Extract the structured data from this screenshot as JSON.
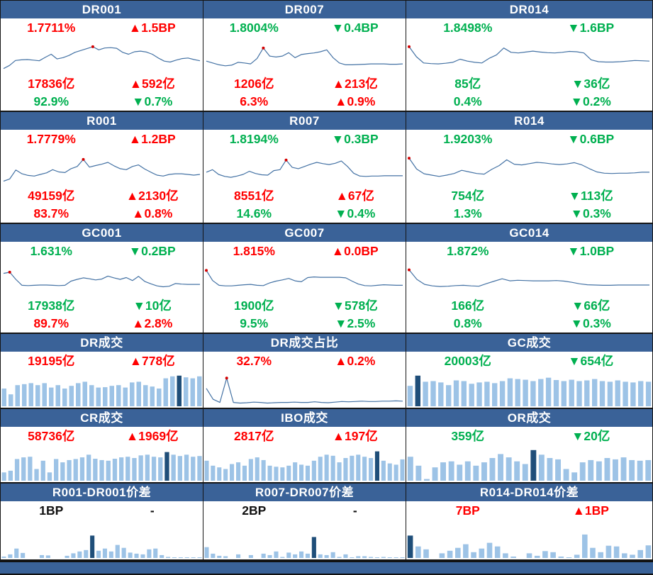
{
  "colors": {
    "header_bg": "#3a6298",
    "line": "#4472a4",
    "marker": "#d40000",
    "bar_light": "#9dc3e6",
    "bar_dark": "#1f4e79",
    "up_red": "#ff0000",
    "down_green": "#00b050",
    "neutral_black": "#111111",
    "footer_bg": "#3a6298"
  },
  "note": "sparkline series and bar heights are normalized 0-100 (no axes shown in source)",
  "chart_data": [
    {
      "panel": "DR001",
      "type": "line",
      "rows": [
        {
          "left": "1.7711%",
          "right": "▲1.5BP",
          "color": "#ff0000"
        },
        {
          "left": "17836亿",
          "right": "▲592亿",
          "color": "#ff0000"
        },
        {
          "left": "92.9%",
          "right": "▼0.7%",
          "color": "#00b050"
        }
      ],
      "series": [
        12,
        22,
        38,
        40,
        41,
        39,
        37,
        48,
        58,
        43,
        47,
        54,
        64,
        70,
        76,
        82,
        72,
        78,
        79,
        77,
        64,
        58,
        66,
        68,
        65,
        58,
        46,
        36,
        33,
        39,
        44,
        46,
        41,
        37
      ],
      "marker_index": 15
    },
    {
      "panel": "DR007",
      "type": "line",
      "rows": [
        {
          "left": "1.8004%",
          "right": "▼0.4BP",
          "color": "#00b050"
        },
        {
          "left": "1206亿",
          "right": "▲213亿",
          "color": "#ff0000"
        },
        {
          "left": "6.3%",
          "right": "▲0.9%",
          "color": "#ff0000"
        }
      ],
      "series": [
        36,
        30,
        24,
        21,
        23,
        32,
        30,
        27,
        44,
        78,
        52,
        49,
        52,
        63,
        47,
        57,
        60,
        62,
        66,
        72,
        47,
        30,
        24,
        24,
        25,
        26,
        27,
        27,
        27,
        26,
        26,
        27
      ],
      "marker_index": 9
    },
    {
      "panel": "DR014",
      "type": "line",
      "rows": [
        {
          "left": "1.8498%",
          "right": "▼1.6BP",
          "color": "#00b050"
        },
        {
          "left": "85亿",
          "right": "▼36亿",
          "color": "#00b050"
        },
        {
          "left": "0.4%",
          "right": "▼0.2%",
          "color": "#00b050"
        }
      ],
      "series": [
        82,
        50,
        30,
        28,
        27,
        29,
        32,
        42,
        36,
        32,
        30,
        45,
        56,
        78,
        64,
        62,
        65,
        68,
        65,
        63,
        62,
        64,
        67,
        66,
        62,
        40,
        34,
        33,
        33,
        34,
        36,
        38,
        37,
        36
      ],
      "marker_index": 0
    },
    {
      "panel": "R001",
      "type": "line",
      "rows": [
        {
          "left": "1.7779%",
          "right": "▲1.2BP",
          "color": "#ff0000"
        },
        {
          "left": "49159亿",
          "right": "▲2130亿",
          "color": "#ff0000"
        },
        {
          "left": "83.7%",
          "right": "▲0.8%",
          "color": "#ff0000"
        }
      ],
      "series": [
        10,
        17,
        45,
        33,
        28,
        26,
        31,
        36,
        46,
        39,
        37,
        49,
        56,
        78,
        54,
        59,
        63,
        69,
        58,
        49,
        46,
        56,
        61,
        48,
        38,
        29,
        26,
        31,
        33,
        33,
        31,
        29,
        31
      ],
      "marker_index": 13
    },
    {
      "panel": "R007",
      "type": "line",
      "rows": [
        {
          "left": "1.8194%",
          "right": "▼0.3BP",
          "color": "#00b050"
        },
        {
          "left": "8551亿",
          "right": "▲67亿",
          "color": "#ff0000"
        },
        {
          "left": "14.6%",
          "right": "▼0.4%",
          "color": "#00b050"
        }
      ],
      "series": [
        38,
        46,
        31,
        25,
        22,
        26,
        31,
        41,
        34,
        30,
        29,
        43,
        46,
        76,
        53,
        49,
        56,
        63,
        69,
        65,
        62,
        66,
        73,
        56,
        35,
        26,
        25,
        26,
        26,
        27,
        27,
        27,
        27
      ],
      "marker_index": 13
    },
    {
      "panel": "R014",
      "type": "line",
      "rows": [
        {
          "left": "1.9203%",
          "right": "▼0.6BP",
          "color": "#00b050"
        },
        {
          "left": "754亿",
          "right": "▼113亿",
          "color": "#00b050"
        },
        {
          "left": "1.3%",
          "right": "▼0.3%",
          "color": "#00b050"
        }
      ],
      "series": [
        82,
        48,
        33,
        29,
        25,
        29,
        34,
        44,
        39,
        34,
        32,
        47,
        59,
        77,
        63,
        61,
        65,
        69,
        67,
        64,
        62,
        64,
        68,
        61,
        49,
        39,
        35,
        34,
        35,
        35,
        36,
        38,
        38
      ],
      "marker_index": 0
    },
    {
      "panel": "GC001",
      "type": "line",
      "rows": [
        {
          "left": "1.631%",
          "right": "▼0.2BP",
          "color": "#00b050"
        },
        {
          "left": "17938亿",
          "right": "▼10亿",
          "color": "#00b050"
        },
        {
          "left": "89.7%",
          "right": "▲2.8%",
          "color": "#ff0000"
        }
      ],
      "series": [
        70,
        74,
        50,
        30,
        29,
        30,
        31,
        31,
        30,
        29,
        30,
        44,
        50,
        55,
        52,
        48,
        51,
        61,
        55,
        50,
        56,
        46,
        60,
        43,
        35,
        28,
        25,
        27,
        36,
        34,
        33,
        33,
        33
      ],
      "marker_index": 1
    },
    {
      "panel": "GC007",
      "type": "line",
      "rows": [
        {
          "left": "1.815%",
          "right": "▲0.0BP",
          "color": "#ff0000"
        },
        {
          "left": "1900亿",
          "right": "▼578亿",
          "color": "#00b050"
        },
        {
          "left": "9.5%",
          "right": "▼2.5%",
          "color": "#00b050"
        }
      ],
      "series": [
        80,
        46,
        30,
        28,
        28,
        30,
        32,
        33,
        30,
        29,
        38,
        44,
        48,
        53,
        45,
        42,
        56,
        58,
        57,
        57,
        57,
        57,
        55,
        44,
        34,
        29,
        28,
        30,
        32,
        31,
        30,
        30
      ],
      "marker_index": 0
    },
    {
      "panel": "GC014",
      "type": "line",
      "rows": [
        {
          "left": "1.872%",
          "right": "▼1.0BP",
          "color": "#00b050"
        },
        {
          "left": "166亿",
          "right": "▼66亿",
          "color": "#00b050"
        },
        {
          "left": "0.8%",
          "right": "▼0.3%",
          "color": "#00b050"
        }
      ],
      "series": [
        82,
        50,
        33,
        28,
        26,
        27,
        29,
        30,
        28,
        27,
        36,
        44,
        52,
        45,
        47,
        46,
        45,
        45,
        45,
        46,
        44,
        40,
        35,
        32,
        31,
        30,
        30,
        31,
        31,
        31,
        31,
        31
      ],
      "marker_index": 0
    },
    {
      "panel": "DR成交",
      "type": "bar",
      "rows": [
        {
          "left": "19195亿",
          "right": "▲778亿",
          "color": "#ff0000"
        }
      ],
      "bars": [
        52,
        35,
        62,
        65,
        68,
        62,
        68,
        55,
        62,
        52,
        60,
        68,
        72,
        62,
        55,
        56,
        60,
        62,
        55,
        70,
        72,
        62,
        58,
        52,
        82,
        88,
        90,
        85,
        82,
        88
      ],
      "dark_index": 26
    },
    {
      "panel": "DR成交占比",
      "type": "line",
      "rows": [
        {
          "left": "32.7%",
          "right": "▲0.2%",
          "color": "#ff0000"
        }
      ],
      "series": [
        55,
        20,
        10,
        88,
        10,
        8,
        9,
        11,
        10,
        8,
        9,
        10,
        10,
        11,
        10,
        10,
        12,
        10,
        9,
        11,
        13,
        12,
        13,
        14,
        13,
        13,
        14,
        14,
        15,
        14
      ],
      "marker_index": 3
    },
    {
      "panel": "GC成交",
      "type": "bar",
      "rows": [
        {
          "left": "20003亿",
          "right": "▼654亿",
          "color": "#00b050"
        }
      ],
      "bars": [
        60,
        90,
        72,
        74,
        70,
        62,
        76,
        74,
        66,
        70,
        72,
        68,
        74,
        82,
        80,
        78,
        74,
        80,
        84,
        77,
        74,
        78,
        74,
        76,
        80,
        74,
        72,
        76,
        72,
        70,
        74,
        72
      ],
      "dark_index": 1
    },
    {
      "panel": "CR成交",
      "type": "bar",
      "rows": [
        {
          "left": "58736亿",
          "right": "▲1969亿",
          "color": "#ff0000"
        }
      ],
      "bars": [
        25,
        30,
        65,
        70,
        72,
        35,
        60,
        25,
        65,
        55,
        62,
        65,
        70,
        78,
        66,
        62,
        60,
        66,
        70,
        72,
        68,
        76,
        78,
        72,
        70,
        86,
        78,
        74,
        78,
        72,
        74
      ],
      "dark_index": 25
    },
    {
      "panel": "IBO成交",
      "type": "bar",
      "rows": [
        {
          "left": "2817亿",
          "right": "▲197亿",
          "color": "#ff0000"
        }
      ],
      "bars": [
        60,
        45,
        40,
        35,
        50,
        55,
        45,
        65,
        70,
        62,
        45,
        42,
        40,
        45,
        55,
        48,
        45,
        60,
        72,
        78,
        75,
        55,
        68,
        75,
        78,
        72,
        68,
        88,
        60,
        52,
        48,
        64
      ],
      "dark_index": 27
    },
    {
      "panel": "OR成交",
      "type": "bar",
      "rows": [
        {
          "left": "359亿",
          "right": "▼20亿",
          "color": "#00b050"
        }
      ],
      "bars": [
        72,
        45,
        5,
        40,
        55,
        58,
        48,
        58,
        45,
        55,
        68,
        80,
        70,
        58,
        50,
        92,
        78,
        68,
        64,
        35,
        25,
        55,
        62,
        58,
        68,
        64,
        70,
        62,
        60,
        62
      ],
      "dark_index": 15
    },
    {
      "panel": "R001-DR001价差",
      "type": "bar",
      "rows": [
        {
          "left": "1BP",
          "right": "-",
          "color": "#111111"
        }
      ],
      "bars": [
        4,
        10,
        26,
        14,
        0,
        0,
        8,
        7,
        0,
        0,
        6,
        13,
        18,
        22,
        62,
        20,
        26,
        18,
        36,
        28,
        15,
        12,
        10,
        24,
        26,
        8,
        3,
        2,
        2,
        2,
        2,
        2
      ],
      "dark_index": 14
    },
    {
      "panel": "R007-DR007价差",
      "type": "bar",
      "rows": [
        {
          "left": "2BP",
          "right": "-",
          "color": "#111111"
        }
      ],
      "bars": [
        30,
        12,
        6,
        5,
        0,
        10,
        0,
        8,
        0,
        12,
        8,
        18,
        3,
        15,
        10,
        18,
        12,
        58,
        10,
        8,
        16,
        3,
        10,
        2,
        5,
        5,
        3,
        2,
        3,
        2,
        2,
        2
      ],
      "dark_index": 17
    },
    {
      "panel": "R014-DR014价差",
      "type": "bar",
      "rows": [
        {
          "left": "7BP",
          "right": "▲1BP",
          "color": "#ff0000"
        }
      ],
      "bars": [
        62,
        32,
        24,
        0,
        13,
        20,
        28,
        38,
        16,
        26,
        42,
        32,
        13,
        4,
        0,
        13,
        6,
        19,
        16,
        4,
        2,
        9,
        65,
        28,
        16,
        34,
        32,
        13,
        9,
        22,
        35
      ],
      "dark_index": 0
    }
  ]
}
